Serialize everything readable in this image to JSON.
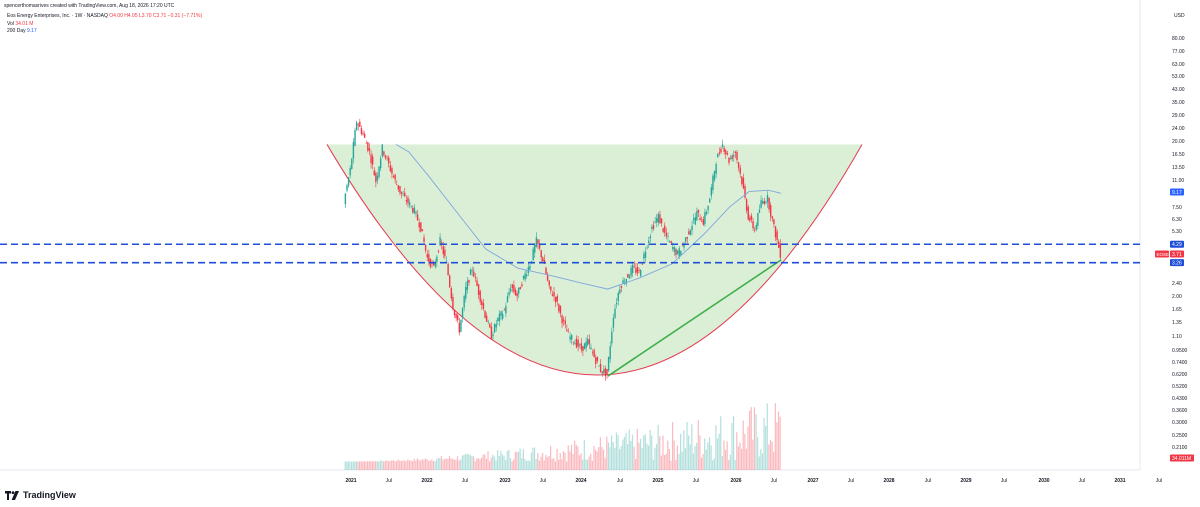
{
  "header": {
    "credit": "spencerthomasrives created with TradingView.com, Aug 18, 2026 17:20 UTC",
    "symbol_line": "Eos Energy Enterprises, Inc. · 1W · NASDAQ",
    "ohlc": {
      "o": "O4.00",
      "h": "H4.05",
      "l": "L3.70",
      "c": "C3.71",
      "chg": "−0.31 (−7.71%)"
    },
    "vol_label": "Vol",
    "vol_value": "34.01 M",
    "ma_label": "200 Day",
    "ma_value": "9.17"
  },
  "brand": {
    "name": "TradingView"
  },
  "colors": {
    "up": "#26a69a",
    "down": "#f23645",
    "bowl_fill": "#cdeac8",
    "bowl_edge": "#e53950",
    "support": "#1f4fd8",
    "trendline": "#3fae49",
    "ma": "#7fa6dd"
  },
  "chart_data": {
    "type": "candlestick",
    "scale": "log",
    "currency_label": "USD",
    "price_axis_ticks": [
      "80.00",
      "77.00",
      "63.00",
      "53.00",
      "43.00",
      "35.00",
      "29.00",
      "24.00",
      "20.00",
      "16.50",
      "13.50",
      "11.00",
      "9.17",
      "7.50",
      "6.30",
      "5.30",
      "4.29",
      "3.71",
      "3.26",
      "2.90",
      "2.40",
      "2.00",
      "1.65",
      "1.35",
      "1.10",
      "0.9500",
      "0.7400",
      "0.6200",
      "0.5200",
      "0.4300",
      "0.3600",
      "0.3000",
      "0.2500",
      "0.2100",
      "34.011M"
    ],
    "time_axis_ticks": [
      "2021",
      "Jul",
      "2022",
      "Jul",
      "2023",
      "Jul",
      "2024",
      "Jul",
      "2025",
      "Jul",
      "2026",
      "Jul",
      "2027",
      "Jul",
      "2028",
      "Jul",
      "2029",
      "Jul",
      "2030",
      "Jul",
      "2031",
      "Jul"
    ],
    "price_markers": [
      {
        "label": "9.17",
        "kind": "ma"
      },
      {
        "label": "4.29",
        "kind": "line"
      },
      {
        "label": "EOSE",
        "kind": "symbol"
      },
      {
        "label": "3.71",
        "kind": "last"
      },
      {
        "label": "3.26",
        "kind": "line"
      }
    ],
    "last_price": 3.71,
    "moving_average": {
      "name": "200 Day",
      "last": 9.17
    },
    "horizontal_levels": [
      4.29,
      3.26
    ],
    "cup_rim": 19.0,
    "cup_bottom": {
      "date": "2024-05",
      "price": 0.6
    },
    "trendline": [
      {
        "date": "2024-05",
        "price": 0.6
      },
      {
        "date": "2026-08",
        "price": 3.4
      }
    ],
    "price_path": [
      [
        "2020-12",
        8.0
      ],
      [
        "2021-01",
        13
      ],
      [
        "2021-02",
        27
      ],
      [
        "2021-03",
        22
      ],
      [
        "2021-04",
        17
      ],
      [
        "2021-05",
        11
      ],
      [
        "2021-06",
        18
      ],
      [
        "2021-07",
        14
      ],
      [
        "2021-08",
        11
      ],
      [
        "2021-09",
        9
      ],
      [
        "2021-10",
        8
      ],
      [
        "2021-11",
        7
      ],
      [
        "2021-12",
        5.5
      ],
      [
        "2022-01",
        3.5
      ],
      [
        "2022-02",
        3.0
      ],
      [
        "2022-03",
        4.5
      ],
      [
        "2022-04",
        3.2
      ],
      [
        "2022-05",
        1.7
      ],
      [
        "2022-06",
        1.2
      ],
      [
        "2022-07",
        2.2
      ],
      [
        "2022-08",
        3.0
      ],
      [
        "2022-09",
        2.1
      ],
      [
        "2022-10",
        1.5
      ],
      [
        "2022-11",
        1.1
      ],
      [
        "2022-12",
        1.4
      ],
      [
        "2023-01",
        1.6
      ],
      [
        "2023-02",
        2.3
      ],
      [
        "2023-03",
        2.0
      ],
      [
        "2023-04",
        2.6
      ],
      [
        "2023-05",
        3.2
      ],
      [
        "2023-06",
        4.5
      ],
      [
        "2023-07",
        3.4
      ],
      [
        "2023-08",
        2.2
      ],
      [
        "2023-09",
        1.9
      ],
      [
        "2023-10",
        1.4
      ],
      [
        "2023-11",
        1.1
      ],
      [
        "2023-12",
        1.0
      ],
      [
        "2024-01",
        0.9
      ],
      [
        "2024-02",
        1.0
      ],
      [
        "2024-03",
        0.8
      ],
      [
        "2024-04",
        0.66
      ],
      [
        "2024-05",
        0.62
      ],
      [
        "2024-06",
        1.5
      ],
      [
        "2024-07",
        2.3
      ],
      [
        "2024-08",
        2.6
      ],
      [
        "2024-09",
        3.0
      ],
      [
        "2024-10",
        2.8
      ],
      [
        "2024-11",
        4.0
      ],
      [
        "2024-12",
        5.5
      ],
      [
        "2025-01",
        6.5
      ],
      [
        "2025-02",
        5.0
      ],
      [
        "2025-03",
        4.2
      ],
      [
        "2025-04",
        3.7
      ],
      [
        "2025-05",
        4.4
      ],
      [
        "2025-06",
        5.5
      ],
      [
        "2025-07",
        6.8
      ],
      [
        "2025-08",
        6.0
      ],
      [
        "2025-09",
        8.5
      ],
      [
        "2025-10",
        15
      ],
      [
        "2025-11",
        19
      ],
      [
        "2025-12",
        15
      ],
      [
        "2026-01",
        17
      ],
      [
        "2026-02",
        11
      ],
      [
        "2026-03",
        6.5
      ],
      [
        "2026-04",
        5.3
      ],
      [
        "2026-05",
        8.0
      ],
      [
        "2026-06",
        8.5
      ],
      [
        "2026-07",
        5.5
      ],
      [
        "2026-08",
        3.71
      ]
    ],
    "ma_path": [
      [
        "2021-08",
        19
      ],
      [
        "2021-10",
        17
      ],
      [
        "2022-01",
        12
      ],
      [
        "2022-06",
        6.5
      ],
      [
        "2022-10",
        4.0
      ],
      [
        "2023-03",
        3.0
      ],
      [
        "2023-08",
        2.7
      ],
      [
        "2024-01",
        2.4
      ],
      [
        "2024-05",
        2.2
      ],
      [
        "2024-10",
        2.6
      ],
      [
        "2025-03",
        3.2
      ],
      [
        "2025-08",
        5.0
      ],
      [
        "2025-12",
        7.5
      ],
      [
        "2026-03",
        9.4
      ],
      [
        "2026-06",
        9.6
      ],
      [
        "2026-08",
        9.17
      ]
    ]
  }
}
